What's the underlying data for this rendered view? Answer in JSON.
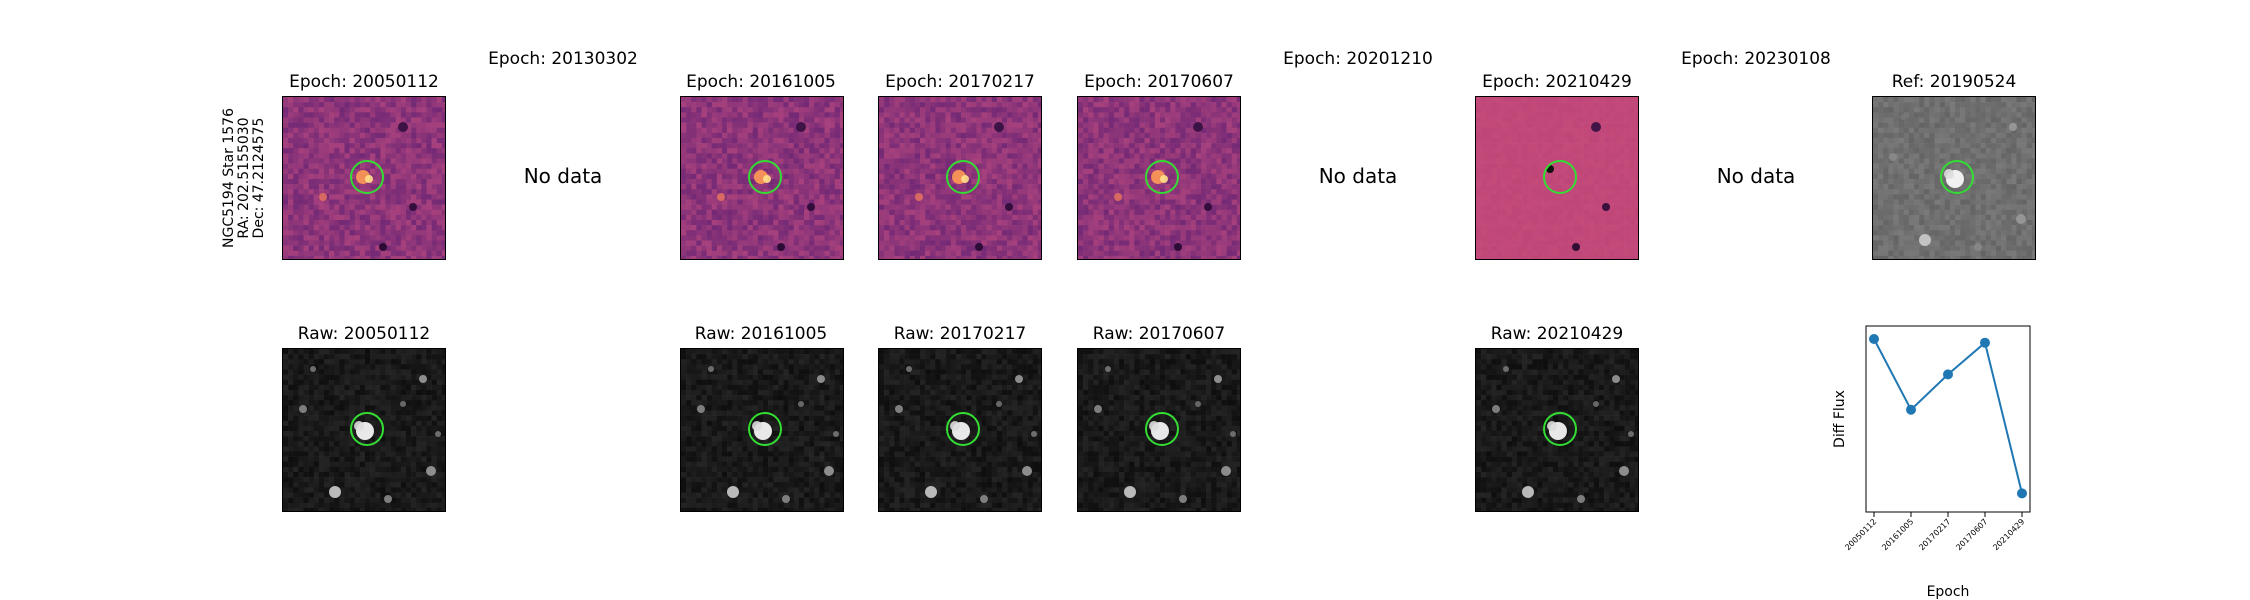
{
  "star": {
    "label_line1": "NGC5194 Star 1576",
    "label_line2": "RA: 202.5155030",
    "label_line3": "Dec: 47.2124575"
  },
  "top_row": [
    {
      "title": "Epoch: 20050112",
      "has_data": true,
      "style": "diff"
    },
    {
      "title": "Epoch: 20130302",
      "has_data": false,
      "note": "No data"
    },
    {
      "title": "Epoch: 20161005",
      "has_data": true,
      "style": "diff"
    },
    {
      "title": "Epoch: 20170217",
      "has_data": true,
      "style": "diff"
    },
    {
      "title": "Epoch: 20170607",
      "has_data": true,
      "style": "diff"
    },
    {
      "title": "Epoch: 20201210",
      "has_data": false,
      "note": "No data"
    },
    {
      "title": "Epoch: 20210429",
      "has_data": true,
      "style": "diff-flat"
    },
    {
      "title": "Epoch: 20230108",
      "has_data": false,
      "note": "No data"
    },
    {
      "title": "Ref: 20190524",
      "has_data": true,
      "style": "ref"
    }
  ],
  "bottom_row": [
    {
      "title": "Raw: 20050112"
    },
    {
      "title": "Raw: 20161005"
    },
    {
      "title": "Raw: 20170217"
    },
    {
      "title": "Raw: 20170607"
    },
    {
      "title": "Raw: 20210429"
    }
  ],
  "colors": {
    "circle": "#33dd33",
    "line": "#1f77b4",
    "diff_base": "#7a3a8c",
    "diff_flat_base": "#c24a7c",
    "raw_base": "#151515",
    "ref_base": "#6e6e6e"
  },
  "chart_data": {
    "type": "line",
    "x": [
      "20050112",
      "20161005",
      "20170217",
      "20170607",
      "20210429"
    ],
    "y": [
      0.93,
      0.55,
      0.74,
      0.91,
      0.1
    ],
    "ylim": [
      0,
      1
    ],
    "xlabel": "Epoch",
    "ylabel": "Diff Flux",
    "title": "",
    "grid": false,
    "legend": "none"
  }
}
